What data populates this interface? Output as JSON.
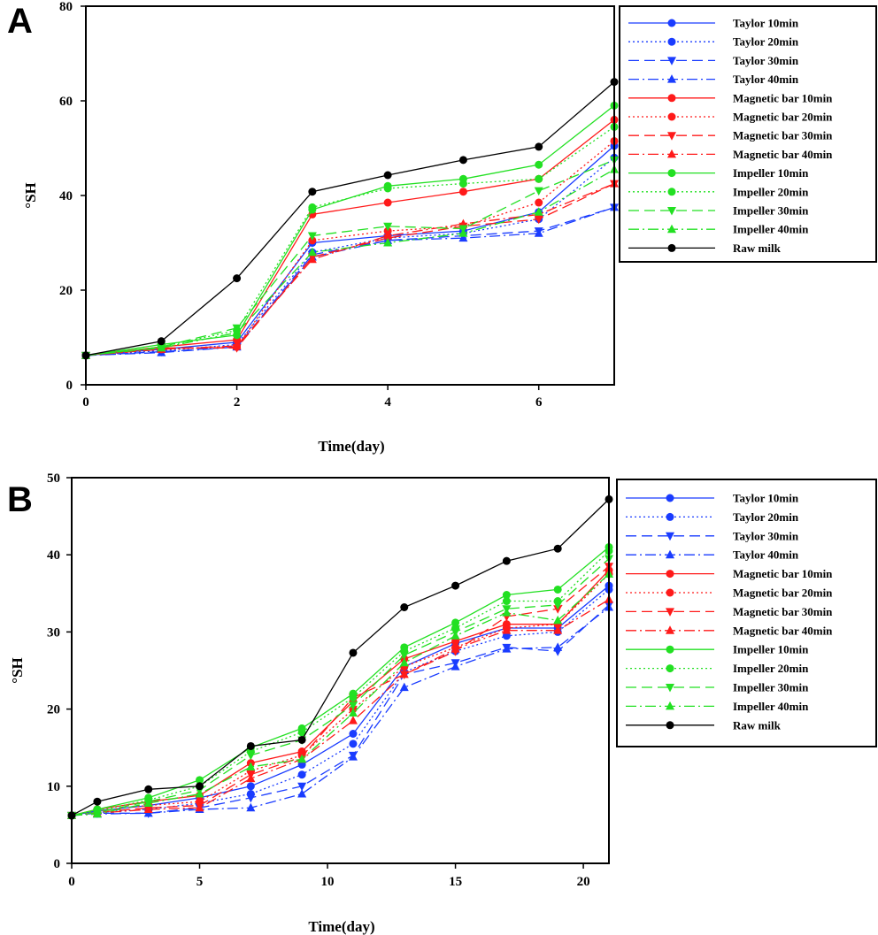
{
  "chart_data": [
    {
      "type": "line",
      "panel_label": "A",
      "title": "",
      "xlabel": "Time(day)",
      "ylabel": "°SH",
      "xlim": [
        0,
        7
      ],
      "ylim": [
        0,
        80
      ],
      "xticks": [
        0,
        2,
        4,
        6
      ],
      "yticks": [
        0,
        20,
        40,
        60,
        80
      ],
      "grid": false,
      "legend_position": "right",
      "series": [
        {
          "name": "Taylor 10min",
          "color": "#1a3cff",
          "dash": "solid",
          "marker": "circle",
          "x": [
            0,
            1,
            2,
            3,
            4,
            5,
            6,
            7
          ],
          "y": [
            6.2,
            7.5,
            9.0,
            30.0,
            31.5,
            32.5,
            36.5,
            50.5
          ]
        },
        {
          "name": "Taylor 20min",
          "color": "#1a3cff",
          "dash": "dotted",
          "marker": "circle",
          "x": [
            0,
            1,
            2,
            3,
            4,
            5,
            6,
            7
          ],
          "y": [
            6.2,
            7.2,
            8.5,
            28.0,
            31.0,
            32.0,
            35.0,
            48.0
          ]
        },
        {
          "name": "Taylor 30min",
          "color": "#1a3cff",
          "dash": "dashed",
          "marker": "triangle-down",
          "x": [
            0,
            1,
            2,
            3,
            4,
            5,
            6,
            7
          ],
          "y": [
            6.2,
            7.0,
            8.0,
            27.5,
            30.5,
            31.5,
            32.5,
            37.5
          ]
        },
        {
          "name": "Taylor 40min",
          "color": "#1a3cff",
          "dash": "dashdot",
          "marker": "triangle-up",
          "x": [
            0,
            1,
            2,
            3,
            4,
            5,
            6,
            7
          ],
          "y": [
            6.2,
            6.8,
            8.0,
            27.0,
            30.5,
            31.0,
            32.0,
            37.5
          ]
        },
        {
          "name": "Magnetic bar 10min",
          "color": "#ff1a1a",
          "dash": "solid",
          "marker": "circle",
          "x": [
            0,
            1,
            2,
            3,
            4,
            5,
            6,
            7
          ],
          "y": [
            6.2,
            8.0,
            9.5,
            36.0,
            38.5,
            40.8,
            43.5,
            56.0
          ]
        },
        {
          "name": "Magnetic bar 20min",
          "color": "#ff1a1a",
          "dash": "dotted",
          "marker": "circle",
          "x": [
            0,
            1,
            2,
            3,
            4,
            5,
            6,
            7
          ],
          "y": [
            6.2,
            7.5,
            8.0,
            30.5,
            32.5,
            33.5,
            38.5,
            51.5
          ]
        },
        {
          "name": "Magnetic bar 30min",
          "color": "#ff1a1a",
          "dash": "dashed",
          "marker": "triangle-down",
          "x": [
            0,
            1,
            2,
            3,
            4,
            5,
            6,
            7
          ],
          "y": [
            6.2,
            7.8,
            7.8,
            27.0,
            31.0,
            33.5,
            35.0,
            42.5
          ]
        },
        {
          "name": "Magnetic bar 40min",
          "color": "#ff1a1a",
          "dash": "dashdot",
          "marker": "triangle-up",
          "x": [
            0,
            1,
            2,
            3,
            4,
            5,
            6,
            7
          ],
          "y": [
            6.2,
            7.5,
            8.2,
            26.5,
            31.5,
            34.0,
            36.0,
            42.5
          ]
        },
        {
          "name": "Impeller 10min",
          "color": "#22e022",
          "dash": "solid",
          "marker": "circle",
          "x": [
            0,
            1,
            2,
            3,
            4,
            5,
            6,
            7
          ],
          "y": [
            6.2,
            8.5,
            10.5,
            37.0,
            42.0,
            43.5,
            46.5,
            59.0
          ]
        },
        {
          "name": "Impeller 20min",
          "color": "#22e022",
          "dash": "dotted",
          "marker": "circle",
          "x": [
            0,
            1,
            2,
            3,
            4,
            5,
            6,
            7
          ],
          "y": [
            6.2,
            8.0,
            11.5,
            37.5,
            41.5,
            42.5,
            43.5,
            54.5
          ]
        },
        {
          "name": "Impeller 30min",
          "color": "#22e022",
          "dash": "dashed",
          "marker": "triangle-down",
          "x": [
            0,
            1,
            2,
            3,
            4,
            5,
            6,
            7
          ],
          "y": [
            6.2,
            8.0,
            12.0,
            31.5,
            33.5,
            33.0,
            41.0,
            47.5
          ]
        },
        {
          "name": "Impeller 40min",
          "color": "#22e022",
          "dash": "dashdot",
          "marker": "triangle-up",
          "x": [
            0,
            1,
            2,
            3,
            4,
            5,
            6,
            7
          ],
          "y": [
            6.2,
            7.8,
            11.0,
            28.0,
            30.0,
            32.0,
            36.5,
            45.5
          ]
        },
        {
          "name": "Raw milk",
          "color": "#000000",
          "dash": "solid",
          "marker": "circle",
          "x": [
            0,
            1,
            2,
            3,
            4,
            5,
            6,
            7
          ],
          "y": [
            6.2,
            9.2,
            22.5,
            40.8,
            44.3,
            47.5,
            50.3,
            64.0
          ]
        }
      ]
    },
    {
      "type": "line",
      "panel_label": "B",
      "title": "",
      "xlabel": "Time(day)",
      "ylabel": "°SH",
      "xlim": [
        0,
        21
      ],
      "ylim": [
        0,
        50
      ],
      "xticks": [
        0,
        5,
        10,
        15,
        20
      ],
      "yticks": [
        0,
        10,
        20,
        30,
        40,
        50
      ],
      "grid": false,
      "legend_position": "right",
      "series": [
        {
          "name": "Taylor 10min",
          "color": "#1a3cff",
          "dash": "solid",
          "marker": "circle",
          "x": [
            0,
            1,
            3,
            5,
            7,
            9,
            11,
            13,
            15,
            17,
            19,
            21
          ],
          "y": [
            6.2,
            6.8,
            7.5,
            8.5,
            10.0,
            12.8,
            16.8,
            25.5,
            28.5,
            30.5,
            30.5,
            36.0
          ]
        },
        {
          "name": "Taylor 20min",
          "color": "#1a3cff",
          "dash": "dotted",
          "marker": "circle",
          "x": [
            0,
            1,
            3,
            5,
            7,
            9,
            11,
            13,
            15,
            17,
            19,
            21
          ],
          "y": [
            6.2,
            6.6,
            7.0,
            7.8,
            9.0,
            11.5,
            15.5,
            24.8,
            27.5,
            29.5,
            30.0,
            35.5
          ]
        },
        {
          "name": "Taylor 30min",
          "color": "#1a3cff",
          "dash": "dashed",
          "marker": "triangle-down",
          "x": [
            0,
            1,
            3,
            5,
            7,
            9,
            11,
            13,
            15,
            17,
            19,
            21
          ],
          "y": [
            6.2,
            6.5,
            6.5,
            7.2,
            8.5,
            10.0,
            14.0,
            24.5,
            26.0,
            28.0,
            27.5,
            33.5
          ]
        },
        {
          "name": "Taylor 40min",
          "color": "#1a3cff",
          "dash": "dashdot",
          "marker": "triangle-up",
          "x": [
            0,
            1,
            3,
            5,
            7,
            9,
            11,
            13,
            15,
            17,
            19,
            21
          ],
          "y": [
            6.2,
            6.4,
            6.5,
            7.0,
            7.2,
            9.0,
            13.8,
            22.8,
            25.5,
            27.8,
            28.0,
            33.2
          ]
        },
        {
          "name": "Magnetic bar 10min",
          "color": "#ff1a1a",
          "dash": "solid",
          "marker": "circle",
          "x": [
            0,
            1,
            3,
            5,
            7,
            9,
            11,
            13,
            15,
            17,
            19,
            21
          ],
          "y": [
            6.2,
            7.0,
            8.0,
            8.8,
            13.0,
            14.5,
            21.0,
            26.5,
            28.8,
            31.0,
            31.0,
            38.0
          ]
        },
        {
          "name": "Magnetic bar 20min",
          "color": "#ff1a1a",
          "dash": "dotted",
          "marker": "circle",
          "x": [
            0,
            1,
            3,
            5,
            7,
            9,
            11,
            13,
            15,
            17,
            19,
            21
          ],
          "y": [
            6.2,
            6.8,
            7.5,
            8.0,
            12.0,
            14.0,
            20.0,
            25.5,
            28.0,
            30.5,
            31.0,
            37.5
          ]
        },
        {
          "name": "Magnetic bar 30min",
          "color": "#ff1a1a",
          "dash": "dashed",
          "marker": "triangle-down",
          "x": [
            0,
            1,
            3,
            5,
            7,
            9,
            11,
            13,
            15,
            17,
            19,
            21
          ],
          "y": [
            6.2,
            6.6,
            7.2,
            7.5,
            11.5,
            13.8,
            21.5,
            24.5,
            27.5,
            32.0,
            33.0,
            38.5
          ]
        },
        {
          "name": "Magnetic bar 40min",
          "color": "#ff1a1a",
          "dash": "dashdot",
          "marker": "triangle-up",
          "x": [
            0,
            1,
            3,
            5,
            7,
            9,
            11,
            13,
            15,
            17,
            19,
            21
          ],
          "y": [
            6.2,
            6.5,
            7.0,
            7.2,
            11.0,
            13.5,
            18.5,
            24.5,
            27.8,
            30.2,
            30.2,
            34.2
          ]
        },
        {
          "name": "Impeller 10min",
          "color": "#22e022",
          "dash": "solid",
          "marker": "circle",
          "x": [
            0,
            1,
            3,
            5,
            7,
            9,
            11,
            13,
            15,
            17,
            19,
            21
          ],
          "y": [
            6.2,
            7.0,
            8.5,
            10.8,
            15.0,
            17.5,
            22.0,
            28.0,
            31.2,
            34.8,
            35.5,
            41.0
          ]
        },
        {
          "name": "Impeller 20min",
          "color": "#22e022",
          "dash": "dotted",
          "marker": "circle",
          "x": [
            0,
            1,
            3,
            5,
            7,
            9,
            11,
            13,
            15,
            17,
            19,
            21
          ],
          "y": [
            6.2,
            6.8,
            8.2,
            10.0,
            14.5,
            17.0,
            21.5,
            27.5,
            30.5,
            34.0,
            34.0,
            40.5
          ]
        },
        {
          "name": "Impeller 30min",
          "color": "#22e022",
          "dash": "dashed",
          "marker": "triangle-down",
          "x": [
            0,
            1,
            3,
            5,
            7,
            9,
            11,
            13,
            15,
            17,
            19,
            21
          ],
          "y": [
            6.2,
            6.6,
            8.0,
            9.5,
            14.0,
            16.0,
            20.5,
            27.0,
            30.0,
            33.0,
            33.5,
            39.5
          ]
        },
        {
          "name": "Impeller 40min",
          "color": "#22e022",
          "dash": "dashdot",
          "marker": "triangle-up",
          "x": [
            0,
            1,
            3,
            5,
            7,
            9,
            11,
            13,
            15,
            17,
            19,
            21
          ],
          "y": [
            6.2,
            6.4,
            7.8,
            9.0,
            12.5,
            13.5,
            19.5,
            26.0,
            29.5,
            32.5,
            31.5,
            37.5
          ]
        },
        {
          "name": "Raw milk",
          "color": "#000000",
          "dash": "solid",
          "marker": "circle",
          "x": [
            0,
            1,
            3,
            5,
            7,
            9,
            11,
            13,
            15,
            17,
            19,
            21
          ],
          "y": [
            6.2,
            8.0,
            9.6,
            10.0,
            15.2,
            16.0,
            27.3,
            33.2,
            36.0,
            39.2,
            40.8,
            47.2
          ]
        }
      ]
    }
  ]
}
